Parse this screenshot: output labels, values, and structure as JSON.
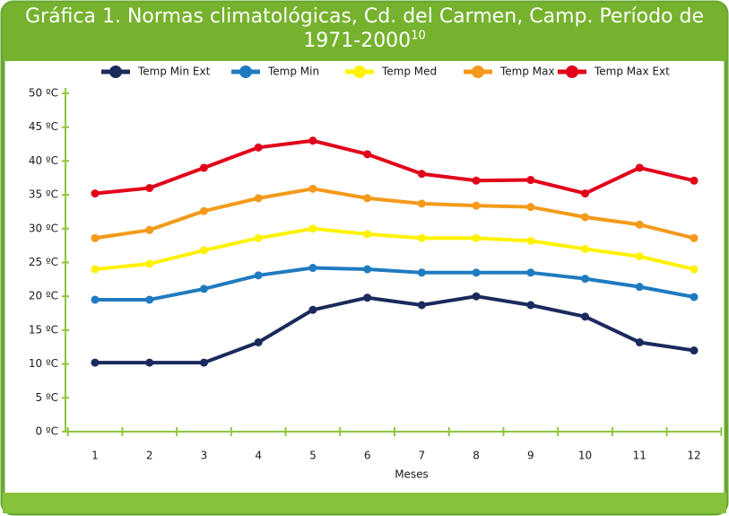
{
  "chart_data": {
    "type": "line",
    "title": "Gráfica 1. Normas climatológicas, Cd. del Carmen, Camp. Período de 1971-2000",
    "title_superscript": "10",
    "x_label": "Meses",
    "categories": [
      "1",
      "2",
      "3",
      "4",
      "5",
      "6",
      "7",
      "8",
      "9",
      "10",
      "11",
      "12"
    ],
    "ylim": [
      0,
      50
    ],
    "yticks": [
      {
        "value": 0,
        "label": "0 ºC"
      },
      {
        "value": 5,
        "label": "5 ºC"
      },
      {
        "value": 10,
        "label": "10 ºC"
      },
      {
        "value": 15,
        "label": "15 ºC"
      },
      {
        "value": 20,
        "label": "20 ºC"
      },
      {
        "value": 25,
        "label": "25 ºC"
      },
      {
        "value": 30,
        "label": "30 ºC"
      },
      {
        "value": 35,
        "label": "35 ºC"
      },
      {
        "value": 40,
        "label": "40 ºC"
      },
      {
        "value": 45,
        "label": "45 ºC"
      },
      {
        "value": 50,
        "label": "50 ºC"
      }
    ],
    "series": [
      {
        "name": "Temp Min Ext",
        "color": "#1b2a5c",
        "values": [
          10.2,
          10.2,
          10.2,
          13.2,
          18,
          19.8,
          18.7,
          20,
          18.7,
          17,
          13.2,
          12
        ]
      },
      {
        "name": "Temp Min",
        "color": "#1f7bc0",
        "values": [
          19.5,
          19.5,
          21.1,
          23.1,
          24.2,
          24,
          23.5,
          23.5,
          23.5,
          22.6,
          21.4,
          19.9
        ]
      },
      {
        "name": "Temp Med",
        "color": "#fff200",
        "values": [
          24,
          24.8,
          26.8,
          28.6,
          30,
          29.2,
          28.6,
          28.6,
          28.2,
          27,
          25.9,
          24
        ]
      },
      {
        "name": "Temp Max",
        "color": "#f39a1a",
        "values": [
          28.6,
          29.8,
          32.6,
          34.5,
          35.9,
          34.5,
          33.7,
          33.4,
          33.2,
          31.7,
          30.6,
          28.6
        ]
      },
      {
        "name": "Temp Max Ext",
        "color": "#e2001a",
        "values": [
          35.2,
          36,
          39,
          42,
          43,
          41,
          38.1,
          37.1,
          37.2,
          35.2,
          39,
          37.1
        ]
      }
    ]
  }
}
